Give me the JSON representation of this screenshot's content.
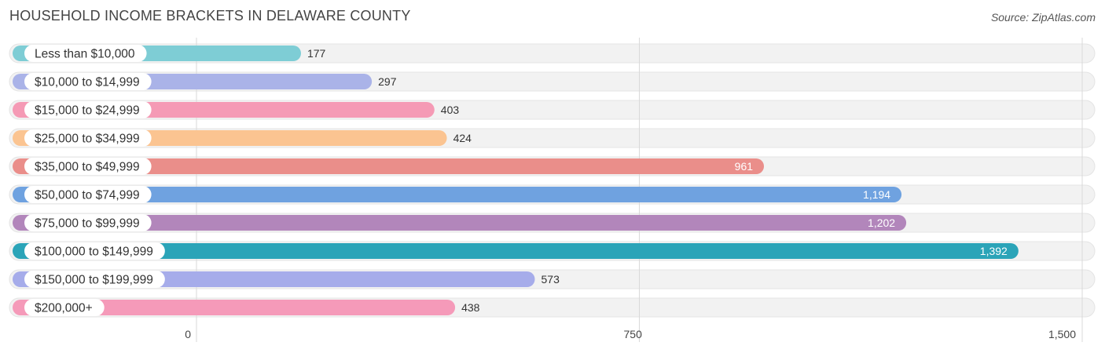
{
  "header": {
    "title": "HOUSEHOLD INCOME BRACKETS IN DELAWARE COUNTY",
    "source": "Source: ZipAtlas.com"
  },
  "chart_data": {
    "type": "bar",
    "orientation": "horizontal",
    "categories": [
      "Less than $10,000",
      "$10,000 to $14,999",
      "$15,000 to $24,999",
      "$25,000 to $34,999",
      "$35,000 to $49,999",
      "$50,000 to $74,999",
      "$75,000 to $99,999",
      "$100,000 to $149,999",
      "$150,000 to $199,999",
      "$200,000+"
    ],
    "values": [
      177,
      297,
      403,
      424,
      961,
      1194,
      1202,
      1392,
      573,
      438
    ],
    "value_labels": [
      "177",
      "297",
      "403",
      "424",
      "961",
      "1,194",
      "1,202",
      "1,392",
      "573",
      "438"
    ],
    "colors": [
      "#7ecdd5",
      "#aab3e8",
      "#f59ab5",
      "#fbc491",
      "#ea8e8a",
      "#6fa2e0",
      "#b286bb",
      "#2ba4b8",
      "#a6acea",
      "#f59ab9"
    ],
    "xlim": [
      0,
      1500
    ],
    "ticks": [
      0,
      750,
      1500
    ],
    "tick_labels": [
      "0",
      "750",
      "1,500"
    ],
    "grid": true
  }
}
